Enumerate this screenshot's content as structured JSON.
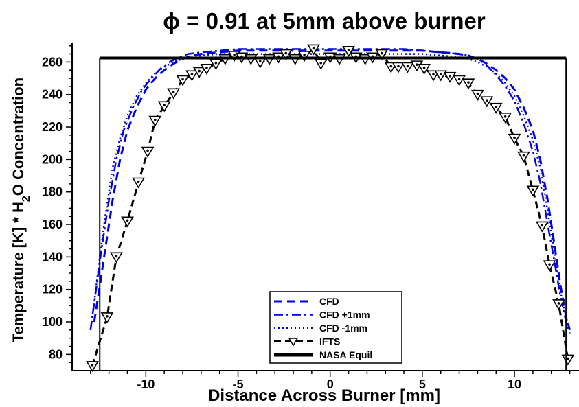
{
  "chart_data": {
    "type": "line",
    "title": "ϕ = 0.91 at 5mm above burner",
    "xlabel": "Distance Across Burner [mm]",
    "ylabel": "Temperature [K] * H2O Concentration",
    "xlim": [
      -14,
      13.5
    ],
    "ylim": [
      70,
      272
    ],
    "x_ticks": [
      -10,
      -5,
      0,
      5,
      10
    ],
    "y_ticks": [
      80,
      100,
      120,
      140,
      160,
      180,
      200,
      220,
      240,
      260
    ],
    "grid": false,
    "legend_position": "bottom-center",
    "series": [
      {
        "name": "CFD",
        "style": "dash",
        "color": "#0000e6",
        "x": [
          -12.8,
          -12.5,
          -12.2,
          -11.8,
          -11.4,
          -11.0,
          -10.5,
          -10.0,
          -9.5,
          -9.0,
          -8.5,
          -8.0,
          -7.5,
          -7.0,
          -6.0,
          -5.0,
          -4.0,
          -2.0,
          0.0,
          2.0,
          4.0,
          5.0,
          6.0,
          7.0,
          7.5,
          8.0,
          8.5,
          9.0,
          9.5,
          10.0,
          10.5,
          11.0,
          11.4,
          11.8,
          12.2,
          12.5,
          12.8,
          13.0
        ],
        "y": [
          100,
          122,
          145,
          175,
          200,
          218,
          232,
          243,
          250,
          255,
          259,
          262,
          264,
          265,
          266,
          267,
          267,
          267,
          267,
          267,
          267,
          267,
          266,
          265,
          264,
          262,
          259,
          255,
          250,
          243,
          232,
          218,
          200,
          175,
          145,
          122,
          103,
          95
        ]
      },
      {
        "name": "CFD +1mm",
        "style": "dashdot",
        "color": "#0000e6",
        "x": [
          -13.0,
          -12.7,
          -12.4,
          -12.0,
          -11.6,
          -11.2,
          -10.7,
          -10.2,
          -9.7,
          -9.2,
          -8.7,
          -8.2,
          -7.7,
          -7.0,
          -6.0,
          -5.0,
          -4.0,
          -2.0,
          0.0,
          2.0,
          4.0,
          5.0,
          6.0,
          7.0,
          7.5,
          8.0,
          8.5,
          9.0,
          9.5,
          10.0,
          10.5,
          11.0,
          11.4,
          11.8,
          12.2,
          12.5,
          12.8,
          13.0
        ],
        "y": [
          95,
          120,
          145,
          175,
          200,
          218,
          232,
          243,
          250,
          256,
          260,
          263,
          265,
          266,
          267,
          268,
          268,
          268,
          268,
          268,
          268,
          267,
          266,
          265,
          264,
          262,
          258,
          252,
          245,
          236,
          222,
          205,
          186,
          160,
          135,
          115,
          100,
          93
        ]
      },
      {
        "name": "CFD -1mm",
        "style": "dot",
        "color": "#0000e6",
        "x": [
          -13.0,
          -12.8,
          -12.5,
          -12.2,
          -11.8,
          -11.4,
          -11.0,
          -10.5,
          -10.0,
          -9.5,
          -9.0,
          -8.5,
          -8.0,
          -7.5,
          -7.0,
          -6.0,
          -5.0,
          -4.0,
          -2.0,
          0.0,
          2.0,
          4.0,
          5.0,
          6.0,
          7.0,
          7.5,
          8.0,
          8.5,
          9.0,
          9.5,
          10.0,
          10.5,
          11.0,
          11.4,
          11.8,
          12.2,
          12.5,
          12.8,
          13.0
        ],
        "y": [
          95,
          112,
          140,
          165,
          195,
          213,
          227,
          239,
          247,
          253,
          257,
          260,
          262,
          263,
          264,
          265,
          265,
          265,
          265,
          265,
          265,
          265,
          265,
          264,
          263,
          262,
          260,
          257,
          253,
          247,
          239,
          227,
          212,
          195,
          168,
          140,
          118,
          103,
          95
        ]
      },
      {
        "name": "IFTS",
        "style": "dash-markers",
        "color": "#000000",
        "x": [
          -12.9,
          -12.1,
          -11.6,
          -11.0,
          -10.4,
          -9.9,
          -9.5,
          -9.0,
          -8.5,
          -8.0,
          -7.5,
          -7.1,
          -6.7,
          -6.2,
          -5.7,
          -5.2,
          -4.8,
          -4.3,
          -3.8,
          -3.3,
          -2.8,
          -2.4,
          -1.9,
          -1.4,
          -0.9,
          -0.5,
          0.0,
          0.5,
          1.0,
          1.4,
          1.9,
          2.3,
          2.8,
          3.3,
          3.7,
          4.2,
          4.7,
          5.1,
          5.6,
          6.0,
          6.5,
          7.0,
          7.5,
          8.0,
          8.5,
          9.0,
          9.5,
          10.0,
          10.5,
          11.0,
          11.5,
          11.9,
          12.4,
          12.9
        ],
        "y": [
          73,
          103,
          140,
          162,
          186,
          205,
          224,
          233,
          241,
          249,
          252,
          254,
          256,
          259,
          262,
          264,
          263,
          262,
          260,
          262,
          263,
          265,
          262,
          264,
          268,
          259,
          263,
          262,
          267,
          263,
          262,
          263,
          265,
          257,
          257,
          257,
          258,
          256,
          252,
          252,
          251,
          249,
          247,
          240,
          236,
          232,
          226,
          213,
          202,
          181,
          159,
          135,
          111,
          77
        ]
      },
      {
        "name": "NASA Equil",
        "style": "solid",
        "color": "#000000",
        "x": [
          -12.5,
          12.8
        ],
        "y": [
          262.5,
          262.5
        ],
        "drop_to_axis": true
      }
    ]
  }
}
